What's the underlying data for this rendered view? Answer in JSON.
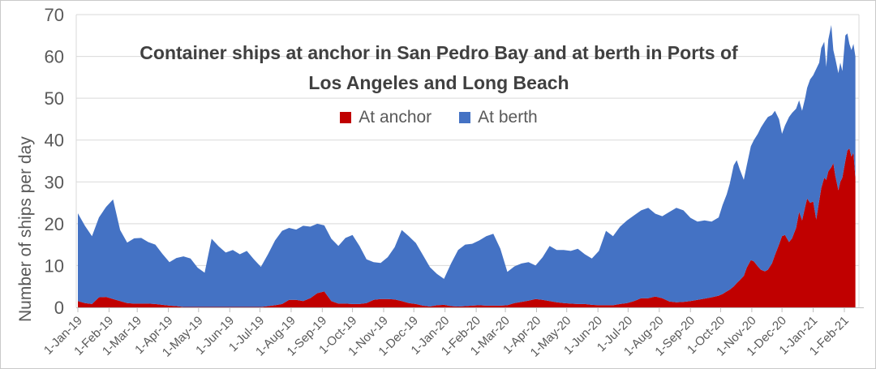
{
  "colors": {
    "anchor": "#C00000",
    "berth": "#4472C4",
    "title_text": "#404040",
    "axis_text": "#595959",
    "gridline": "#D9D9D9",
    "axis_line": "#BFBFBF",
    "background": "#FFFFFF"
  },
  "chart_data": {
    "type": "area",
    "stacked": true,
    "grid": true,
    "legend_position": "top-center",
    "title": "Container ships at anchor in San Pedro Bay and at berth in Ports of Los Angeles and Long Beach",
    "title_lines": [
      "Container ships at anchor in San Pedro Bay and at berth in Ports of",
      "Los Angeles and Long Beach"
    ],
    "ylabel": "Number of ships per day",
    "ylim": [
      0,
      70
    ],
    "yticks": [
      0,
      10,
      20,
      30,
      40,
      50,
      60,
      70
    ],
    "legend": [
      {
        "label": "At anchor",
        "color": "#C00000"
      },
      {
        "label": "At berth",
        "color": "#4472C4"
      }
    ],
    "xticks": [
      {
        "label": "1-Jan-19",
        "date": "2019-01-01"
      },
      {
        "label": "1-Feb-19",
        "date": "2019-02-01"
      },
      {
        "label": "1-Mar-19",
        "date": "2019-03-01"
      },
      {
        "label": "1-Apr-19",
        "date": "2019-04-01"
      },
      {
        "label": "1-May-19",
        "date": "2019-05-01"
      },
      {
        "label": "1-Jun-19",
        "date": "2019-06-01"
      },
      {
        "label": "1-Jul-19",
        "date": "2019-07-01"
      },
      {
        "label": "1-Aug-19",
        "date": "2019-08-01"
      },
      {
        "label": "1-Sep-19",
        "date": "2019-09-01"
      },
      {
        "label": "1-Oct-19",
        "date": "2019-10-01"
      },
      {
        "label": "1-Nov-19",
        "date": "2019-11-01"
      },
      {
        "label": "1-Dec-19",
        "date": "2019-12-01"
      },
      {
        "label": "1-Jan-20",
        "date": "2020-01-01"
      },
      {
        "label": "1-Feb-20",
        "date": "2020-02-01"
      },
      {
        "label": "1-Mar-20",
        "date": "2020-03-01"
      },
      {
        "label": "1-Apr-20",
        "date": "2020-04-01"
      },
      {
        "label": "1-May-20",
        "date": "2020-05-01"
      },
      {
        "label": "1-Jun-20",
        "date": "2020-06-01"
      },
      {
        "label": "1-Jul-20",
        "date": "2020-07-01"
      },
      {
        "label": "1-Aug-20",
        "date": "2020-08-01"
      },
      {
        "label": "1-Sep-20",
        "date": "2020-09-01"
      },
      {
        "label": "1-Oct-20",
        "date": "2020-10-01"
      },
      {
        "label": "1-Nov-20",
        "date": "2020-11-01"
      },
      {
        "label": "1-Dec-20",
        "date": "2020-12-01"
      },
      {
        "label": "1-Jan-21",
        "date": "2021-01-01"
      },
      {
        "label": "1-Feb-21",
        "date": "2021-02-01"
      }
    ],
    "series_names": [
      "At anchor",
      "At berth"
    ],
    "points_format": [
      "date",
      "at_anchor",
      "at_berth"
    ],
    "points": [
      [
        "2019-01-01",
        1.5,
        21.0
      ],
      [
        "2019-01-08",
        1.0,
        18.5
      ],
      [
        "2019-01-15",
        0.8,
        16.2
      ],
      [
        "2019-01-22",
        2.4,
        19.1
      ],
      [
        "2019-01-29",
        2.5,
        21.5
      ],
      [
        "2019-02-05",
        2.0,
        23.8
      ],
      [
        "2019-02-12",
        1.5,
        17.0
      ],
      [
        "2019-02-19",
        1.0,
        14.5
      ],
      [
        "2019-02-26",
        0.9,
        15.6
      ],
      [
        "2019-03-05",
        0.9,
        15.7
      ],
      [
        "2019-03-12",
        0.9,
        14.7
      ],
      [
        "2019-03-19",
        0.8,
        14.2
      ],
      [
        "2019-03-26",
        0.6,
        12.2
      ],
      [
        "2019-04-02",
        0.4,
        10.4
      ],
      [
        "2019-04-09",
        0.3,
        11.5
      ],
      [
        "2019-04-16",
        0.1,
        12.1
      ],
      [
        "2019-04-23",
        0.1,
        11.6
      ],
      [
        "2019-04-30",
        0.1,
        9.4
      ],
      [
        "2019-05-07",
        0.1,
        8.2
      ],
      [
        "2019-05-14",
        0.1,
        16.3
      ],
      [
        "2019-05-21",
        0.1,
        14.5
      ],
      [
        "2019-05-28",
        0.1,
        13.0
      ],
      [
        "2019-06-04",
        0.1,
        13.6
      ],
      [
        "2019-06-11",
        0.1,
        12.6
      ],
      [
        "2019-06-18",
        0.1,
        13.4
      ],
      [
        "2019-06-25",
        0.1,
        11.4
      ],
      [
        "2019-07-02",
        0.1,
        9.6
      ],
      [
        "2019-07-09",
        0.3,
        12.4
      ],
      [
        "2019-07-16",
        0.5,
        15.5
      ],
      [
        "2019-07-23",
        0.8,
        17.5
      ],
      [
        "2019-07-30",
        1.8,
        17.2
      ],
      [
        "2019-08-06",
        1.8,
        16.8
      ],
      [
        "2019-08-13",
        1.5,
        18.0
      ],
      [
        "2019-08-20",
        2.2,
        17.1
      ],
      [
        "2019-08-27",
        3.4,
        16.6
      ],
      [
        "2019-09-03",
        3.8,
        15.8
      ],
      [
        "2019-09-10",
        1.5,
        14.9
      ],
      [
        "2019-09-17",
        0.9,
        13.8
      ],
      [
        "2019-09-24",
        0.9,
        15.7
      ],
      [
        "2019-10-01",
        0.8,
        16.5
      ],
      [
        "2019-10-08",
        0.8,
        13.9
      ],
      [
        "2019-10-15",
        1.0,
        10.5
      ],
      [
        "2019-10-22",
        1.8,
        9.0
      ],
      [
        "2019-10-29",
        2.0,
        8.6
      ],
      [
        "2019-11-05",
        2.0,
        10.0
      ],
      [
        "2019-11-12",
        1.9,
        12.5
      ],
      [
        "2019-11-19",
        1.5,
        17.0
      ],
      [
        "2019-11-26",
        1.0,
        16.0
      ],
      [
        "2019-12-03",
        0.8,
        14.6
      ],
      [
        "2019-12-10",
        0.4,
        12.1
      ],
      [
        "2019-12-17",
        0.2,
        9.4
      ],
      [
        "2019-12-24",
        0.5,
        7.5
      ],
      [
        "2019-12-31",
        0.6,
        6.2
      ],
      [
        "2020-01-07",
        0.3,
        10.2
      ],
      [
        "2020-01-14",
        0.2,
        13.5
      ],
      [
        "2020-01-21",
        0.3,
        14.7
      ],
      [
        "2020-01-28",
        0.4,
        14.8
      ],
      [
        "2020-02-04",
        0.5,
        15.5
      ],
      [
        "2020-02-11",
        0.4,
        16.6
      ],
      [
        "2020-02-18",
        0.4,
        17.2
      ],
      [
        "2020-02-25",
        0.4,
        13.6
      ],
      [
        "2020-03-03",
        0.5,
        8.0
      ],
      [
        "2020-03-10",
        1.0,
        8.8
      ],
      [
        "2020-03-17",
        1.3,
        9.2
      ],
      [
        "2020-03-24",
        1.6,
        9.2
      ],
      [
        "2020-03-31",
        2.0,
        8.0
      ],
      [
        "2020-04-07",
        1.8,
        10.2
      ],
      [
        "2020-04-14",
        1.5,
        13.2
      ],
      [
        "2020-04-21",
        1.2,
        12.5
      ],
      [
        "2020-04-28",
        1.0,
        12.7
      ],
      [
        "2020-05-05",
        0.9,
        12.6
      ],
      [
        "2020-05-12",
        0.8,
        13.2
      ],
      [
        "2020-05-19",
        0.8,
        11.9
      ],
      [
        "2020-05-26",
        0.6,
        11.1
      ],
      [
        "2020-06-02",
        0.5,
        13.0
      ],
      [
        "2020-06-09",
        0.5,
        17.8
      ],
      [
        "2020-06-16",
        0.5,
        16.5
      ],
      [
        "2020-06-23",
        0.8,
        18.5
      ],
      [
        "2020-06-30",
        1.0,
        19.8
      ],
      [
        "2020-07-07",
        1.5,
        20.5
      ],
      [
        "2020-07-14",
        2.2,
        21.0
      ],
      [
        "2020-07-21",
        2.2,
        21.6
      ],
      [
        "2020-07-28",
        2.6,
        19.8
      ],
      [
        "2020-08-04",
        2.2,
        19.6
      ],
      [
        "2020-08-11",
        1.4,
        21.4
      ],
      [
        "2020-08-18",
        1.2,
        22.6
      ],
      [
        "2020-08-25",
        1.3,
        21.9
      ],
      [
        "2020-09-01",
        1.5,
        19.9
      ],
      [
        "2020-09-08",
        1.8,
        18.7
      ],
      [
        "2020-09-15",
        2.1,
        18.7
      ],
      [
        "2020-09-22",
        2.4,
        18.1
      ],
      [
        "2020-09-29",
        2.8,
        18.7
      ],
      [
        "2020-10-03",
        3.2,
        21.3
      ],
      [
        "2020-10-07",
        3.8,
        23.2
      ],
      [
        "2020-10-10",
        4.2,
        25.3
      ],
      [
        "2020-10-14",
        5.0,
        29.0
      ],
      [
        "2020-10-17",
        5.8,
        29.4
      ],
      [
        "2020-10-20",
        6.5,
        26.5
      ],
      [
        "2020-10-24",
        7.5,
        23.0
      ],
      [
        "2020-10-27",
        9.5,
        24.5
      ],
      [
        "2020-10-31",
        11.3,
        27.2
      ],
      [
        "2020-11-03",
        11.0,
        29.0
      ],
      [
        "2020-11-07",
        9.8,
        31.7
      ],
      [
        "2020-11-10",
        9.0,
        34.0
      ],
      [
        "2020-11-14",
        8.6,
        35.9
      ],
      [
        "2020-11-17",
        9.0,
        36.5
      ],
      [
        "2020-11-21",
        10.5,
        35.5
      ],
      [
        "2020-11-24",
        12.5,
        34.5
      ],
      [
        "2020-11-28",
        15.0,
        30.0
      ],
      [
        "2020-12-01",
        17.0,
        24.5
      ],
      [
        "2020-12-04",
        17.3,
        26.2
      ],
      [
        "2020-12-08",
        15.6,
        29.9
      ],
      [
        "2020-12-11",
        16.5,
        30.0
      ],
      [
        "2020-12-15",
        19.0,
        28.5
      ],
      [
        "2020-12-18",
        22.8,
        26.7
      ],
      [
        "2020-12-21",
        20.8,
        26.2
      ],
      [
        "2020-12-24",
        24.0,
        26.0
      ],
      [
        "2020-12-26",
        26.0,
        26.5
      ],
      [
        "2020-12-29",
        25.0,
        29.5
      ],
      [
        "2021-01-01",
        25.3,
        30.2
      ],
      [
        "2021-01-04",
        21.0,
        36.0
      ],
      [
        "2021-01-07",
        25.5,
        33.0
      ],
      [
        "2021-01-09",
        28.5,
        33.5
      ],
      [
        "2021-01-12",
        31.0,
        32.5
      ],
      [
        "2021-01-14",
        30.5,
        27.0
      ],
      [
        "2021-01-16",
        32.5,
        31.5
      ],
      [
        "2021-01-19",
        33.5,
        34.0
      ],
      [
        "2021-01-21",
        34.5,
        27.0
      ],
      [
        "2021-01-23",
        31.5,
        28.0
      ],
      [
        "2021-01-26",
        28.0,
        28.0
      ],
      [
        "2021-01-28",
        30.0,
        28.5
      ],
      [
        "2021-01-30",
        31.0,
        25.5
      ],
      [
        "2021-02-02",
        35.0,
        30.0
      ],
      [
        "2021-02-04",
        37.5,
        28.0
      ],
      [
        "2021-02-06",
        38.0,
        25.0
      ],
      [
        "2021-02-08",
        36.0,
        25.5
      ],
      [
        "2021-02-10",
        37.0,
        26.0
      ],
      [
        "2021-02-12",
        31.0,
        29.0
      ]
    ]
  }
}
